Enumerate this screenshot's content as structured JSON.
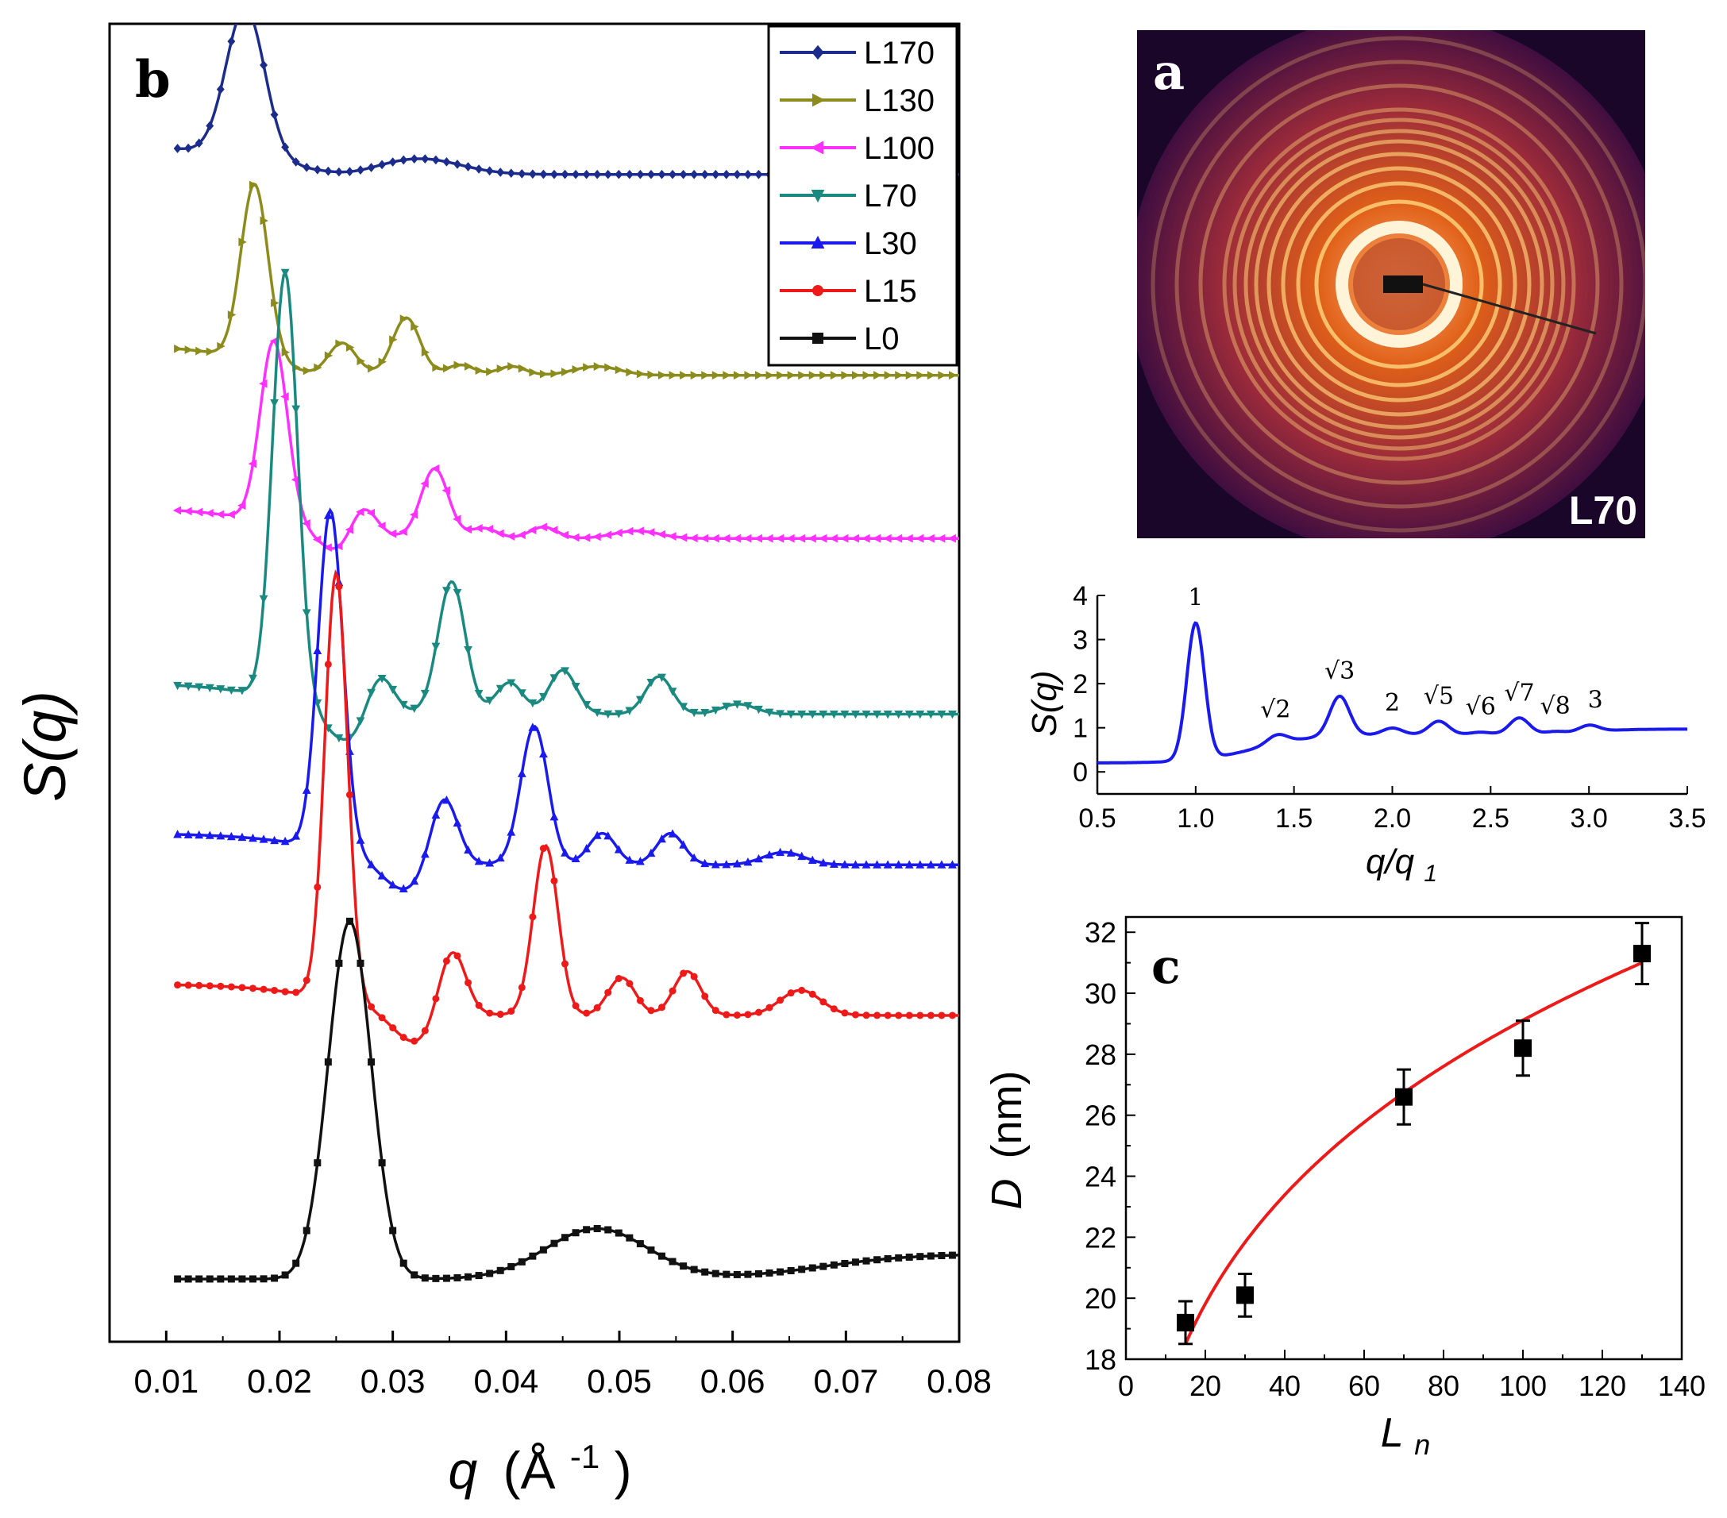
{
  "figure": {
    "panel_b": {
      "letter": "b",
      "xlabel_var": "q",
      "xlabel_unit": "(Å",
      "xlabel_exp": "-1",
      "xlabel_close": ")",
      "ylabel": "S(q)"
    },
    "panel_a": {
      "letter": "a",
      "sample": "L70",
      "colors": {
        "bg": "#2a0a3a",
        "ring": "#ffd27a",
        "glow": "#e07020"
      }
    },
    "inset": {
      "ylabel": "S(q)",
      "xlabel_var": "q/q",
      "xlabel_sub": "1",
      "peak_labels": [
        "1",
        "√2",
        "√3",
        "2",
        "√5",
        "√6",
        "√7",
        "√8",
        "3"
      ]
    },
    "panel_c": {
      "letter": "c",
      "xlabel_var": "L",
      "xlabel_sub": "n",
      "ylabel_var": "D",
      "ylabel_unit": "(nm)"
    }
  },
  "chart_data": [
    {
      "id": "b",
      "type": "line",
      "title": "",
      "xlabel": "q (Å-1)",
      "ylabel": "S(q)",
      "xlim": [
        0.005,
        0.08
      ],
      "xticks": [
        0.01,
        0.02,
        0.03,
        0.04,
        0.05,
        0.06,
        0.07,
        0.08
      ],
      "xtick_labels": [
        "0.01",
        "0.02",
        "0.03",
        "0.04",
        "0.05",
        "0.06",
        "0.07",
        "0.08"
      ],
      "y_units": "arbitrary (curves vertically offset)",
      "ylim": [
        0,
        10.5
      ],
      "legend_position": "top-right",
      "series": [
        {
          "name": "L170",
          "color": "#1c2c8c",
          "marker": "diamond",
          "base": 9.3,
          "peaks": [
            [
              0.017,
              1.2,
              0.0017
            ],
            [
              0.0325,
              0.12,
              0.0035
            ]
          ],
          "dip": [
            0.026,
            0.08,
            0.002
          ]
        },
        {
          "name": "L130",
          "color": "#8c8c1c",
          "marker": "tri-right",
          "base": 7.7,
          "peaks": [
            [
              0.0178,
              1.4,
              0.0012
            ],
            [
              0.0255,
              0.25,
              0.0012
            ],
            [
              0.0312,
              0.45,
              0.0012
            ],
            [
              0.036,
              0.08,
              0.0012
            ],
            [
              0.0405,
              0.07,
              0.0012
            ],
            [
              0.048,
              0.07,
              0.002
            ]
          ],
          "dip": [
            0.0235,
            0.13,
            0.002
          ]
        },
        {
          "name": "L100",
          "color": "#ff30ff",
          "marker": "tri-left",
          "base": 6.4,
          "peaks": [
            [
              0.0195,
              1.45,
              0.0012
            ],
            [
              0.0273,
              0.3,
              0.0012
            ],
            [
              0.0337,
              0.55,
              0.0012
            ],
            [
              0.038,
              0.08,
              0.0012
            ],
            [
              0.0433,
              0.09,
              0.0012
            ],
            [
              0.0515,
              0.06,
              0.002
            ]
          ],
          "dip": [
            0.0255,
            0.6,
            0.0018
          ]
        },
        {
          "name": "L70",
          "color": "#1a8a80",
          "marker": "tri-down",
          "base": 5.0,
          "peaks": [
            [
              0.0205,
              3.4,
              0.0011
            ],
            [
              0.0288,
              0.35,
              0.0012
            ],
            [
              0.0352,
              1.05,
              0.0012
            ],
            [
              0.0403,
              0.25,
              0.0012
            ],
            [
              0.045,
              0.35,
              0.0012
            ],
            [
              0.0535,
              0.3,
              0.0012
            ],
            [
              0.0605,
              0.08,
              0.0015
            ]
          ],
          "dip": [
            0.026,
            0.9,
            0.002
          ]
        },
        {
          "name": "L30",
          "color": "#1a1aee",
          "marker": "triangle",
          "base": 3.8,
          "peaks": [
            [
              0.0245,
              2.7,
              0.0011
            ],
            [
              0.0345,
              0.55,
              0.0012
            ],
            [
              0.0425,
              1.1,
              0.0012
            ],
            [
              0.0485,
              0.25,
              0.0012
            ],
            [
              0.0545,
              0.25,
              0.0012
            ],
            [
              0.0645,
              0.1,
              0.0018
            ]
          ],
          "dip": [
            0.031,
            0.8,
            0.002
          ]
        },
        {
          "name": "L15",
          "color": "#ee1a1a",
          "marker": "circle",
          "base": 2.6,
          "peaks": [
            [
              0.025,
              3.4,
              0.001
            ],
            [
              0.0352,
              0.55,
              0.0012
            ],
            [
              0.0435,
              1.35,
              0.0011
            ],
            [
              0.0502,
              0.3,
              0.0012
            ],
            [
              0.056,
              0.35,
              0.0012
            ],
            [
              0.066,
              0.2,
              0.0018
            ]
          ],
          "dip": [
            0.032,
            0.85,
            0.002
          ]
        },
        {
          "name": "L0",
          "color": "#111111",
          "marker": "square",
          "base": 0.5,
          "peaks": [
            [
              0.0262,
              2.85,
              0.0019
            ],
            [
              0.048,
              0.4,
              0.0045
            ]
          ],
          "dip": [
            0.0345,
            0.0,
            0.002
          ]
        }
      ]
    },
    {
      "id": "a_inset",
      "type": "line",
      "title": "",
      "xlabel": "q/q1",
      "ylabel": "S(q)",
      "xlim": [
        0.5,
        3.5
      ],
      "ylim": [
        -0.5,
        4
      ],
      "xticks": [
        0.5,
        1.0,
        1.5,
        2.0,
        2.5,
        3.0,
        3.5
      ],
      "xtick_labels": [
        "0.5",
        "1.0",
        "1.5",
        "2.0",
        "2.5",
        "3.0",
        "3.5"
      ],
      "yticks": [
        0,
        1,
        2,
        3,
        4
      ],
      "ytick_labels": [
        "0",
        "1",
        "2",
        "3",
        "4"
      ],
      "series": [
        {
          "name": "L70",
          "color": "#1a1aee",
          "peak_positions": [
            1.0,
            1.414,
            1.732,
            2.0,
            2.236,
            2.449,
            2.646,
            2.828,
            3.0
          ],
          "peak_values": [
            3.45,
            1.05,
            1.75,
            1.0,
            1.15,
            0.9,
            1.22,
            0.9,
            1.0
          ]
        }
      ]
    },
    {
      "id": "c",
      "type": "scatter",
      "title": "",
      "xlabel": "Ln",
      "ylabel": "D (nm)",
      "xlim": [
        0,
        140
      ],
      "ylim": [
        18,
        32.5
      ],
      "xticks": [
        0,
        20,
        40,
        60,
        80,
        100,
        120,
        140
      ],
      "xtick_labels": [
        "0",
        "20",
        "40",
        "60",
        "80",
        "100",
        "120",
        "140"
      ],
      "yticks": [
        18,
        20,
        22,
        24,
        26,
        28,
        30,
        32
      ],
      "ytick_labels": [
        "18",
        "20",
        "22",
        "24",
        "26",
        "28",
        "30",
        "32"
      ],
      "points": [
        {
          "x": 15,
          "y": 19.2,
          "err": 0.7
        },
        {
          "x": 30,
          "y": 20.1,
          "err": 0.7
        },
        {
          "x": 70,
          "y": 26.6,
          "err": 0.9
        },
        {
          "x": 100,
          "y": 28.2,
          "err": 0.9
        },
        {
          "x": 130,
          "y": 31.3,
          "err": 1.0
        }
      ],
      "fit": {
        "color": "#ee1a1a",
        "x_range": [
          15,
          130
        ],
        "y_start": 18.5,
        "y_end": 31.0
      }
    }
  ]
}
